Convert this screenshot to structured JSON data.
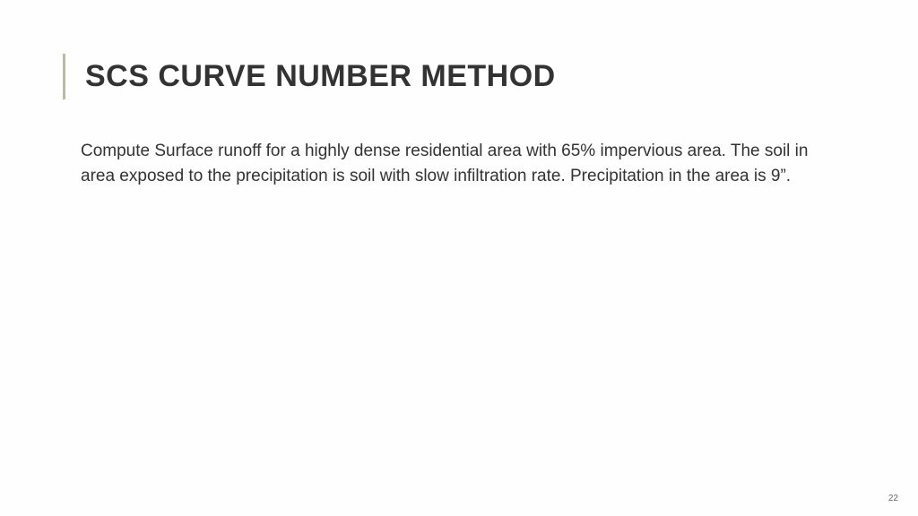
{
  "slide": {
    "title": "SCS CURVE NUMBER METHOD",
    "body": "Compute Surface runoff for a highly dense residential area with 65% impervious area. The soil in area exposed to the precipitation is soil with slow infiltration rate. Precipitation in the area is 9”.",
    "page_number": "22"
  },
  "style": {
    "background_color": "#fefefe",
    "title_color": "#333333",
    "title_bar_color": "#b8bba8",
    "body_color": "#333333",
    "title_fontsize": 34,
    "body_fontsize": 19,
    "page_num_fontsize": 10,
    "page_num_color": "#666666"
  }
}
